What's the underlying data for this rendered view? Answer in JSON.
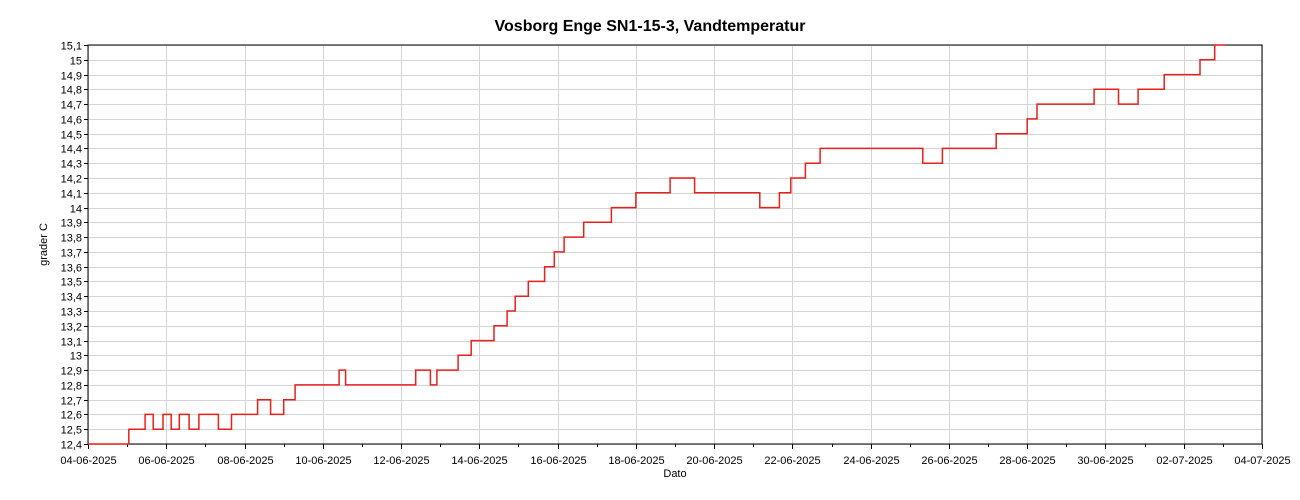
{
  "chart_data": {
    "type": "line",
    "title": "Vosborg Enge SN1-15-3, Vandtemperatur",
    "xlabel": "Dato",
    "ylabel": "grader C",
    "grid": true,
    "legend": "none",
    "xlim": [
      "2025-06-04",
      "2025-07-04"
    ],
    "ylim": [
      12.4,
      15.1
    ],
    "x_tick_labels": [
      "04-06-2025",
      "06-06-2025",
      "08-06-2025",
      "10-06-2025",
      "12-06-2025",
      "14-06-2025",
      "16-06-2025",
      "18-06-2025",
      "20-06-2025",
      "22-06-2025",
      "24-06-2025",
      "26-06-2025",
      "28-06-2025",
      "30-06-2025",
      "02-07-2025",
      "04-07-2025"
    ],
    "y_tick_labels": [
      "12,4",
      "12,5",
      "12,6",
      "12,7",
      "12,8",
      "12,9",
      "13",
      "13,1",
      "13,2",
      "13,3",
      "13,4",
      "13,5",
      "13,6",
      "13,7",
      "13,8",
      "13,9",
      "14",
      "14,1",
      "14,2",
      "14,3",
      "14,4",
      "14,5",
      "14,6",
      "14,7",
      "14,8",
      "14,9",
      "15",
      "15,1"
    ],
    "series": [
      {
        "color": "#e8201c",
        "x": [
          "2025-06-04 00:00",
          "2025-06-04 21:00",
          "2025-06-05 01:00",
          "2025-06-05 11:00",
          "2025-06-05 16:00",
          "2025-06-05 22:00",
          "2025-06-06 03:00",
          "2025-06-06 08:00",
          "2025-06-06 14:00",
          "2025-06-06 20:00",
          "2025-06-07 08:00",
          "2025-06-07 16:00",
          "2025-06-08 00:00",
          "2025-06-08 08:00",
          "2025-06-08 16:00",
          "2025-06-09 00:00",
          "2025-06-09 07:00",
          "2025-06-10 06:00",
          "2025-06-10 10:00",
          "2025-06-10 14:00",
          "2025-06-11 06:00",
          "2025-06-11 18:00",
          "2025-06-12 03:00",
          "2025-06-12 09:00",
          "2025-06-12 18:00",
          "2025-06-12 22:00",
          "2025-06-13 11:00",
          "2025-06-13 19:00",
          "2025-06-14 09:00",
          "2025-06-14 17:00",
          "2025-06-14 22:00",
          "2025-06-15 06:00",
          "2025-06-15 16:00",
          "2025-06-15 22:00",
          "2025-06-16 04:00",
          "2025-06-16 16:00",
          "2025-06-17 09:00",
          "2025-06-18 00:00",
          "2025-06-18 21:00",
          "2025-06-19 12:00",
          "2025-06-20 16:00",
          "2025-06-21 04:00",
          "2025-06-21 16:00",
          "2025-06-21 23:00",
          "2025-06-22 08:00",
          "2025-06-22 17:00",
          "2025-06-23 20:00",
          "2025-06-24 21:00",
          "2025-06-25 08:00",
          "2025-06-25 20:00",
          "2025-06-26 13:00",
          "2025-06-27 05:00",
          "2025-06-28 00:00",
          "2025-06-28 06:00",
          "2025-06-28 21:00",
          "2025-06-29 10:00",
          "2025-06-29 17:00",
          "2025-06-30 00:00",
          "2025-06-30 08:00",
          "2025-06-30 20:00",
          "2025-07-01 03:00",
          "2025-07-01 12:00",
          "2025-07-01 22:00",
          "2025-07-02 10:00",
          "2025-07-02 19:00",
          "2025-07-03 00:00",
          "2025-07-03 02:00"
        ],
        "y": [
          12.4,
          12.4,
          12.5,
          12.6,
          12.5,
          12.6,
          12.5,
          12.6,
          12.5,
          12.6,
          12.5,
          12.6,
          12.6,
          12.7,
          12.6,
          12.7,
          12.8,
          12.8,
          12.9,
          12.8,
          12.8,
          12.8,
          12.8,
          12.9,
          12.8,
          12.9,
          13.0,
          13.1,
          13.2,
          13.3,
          13.4,
          13.5,
          13.6,
          13.7,
          13.8,
          13.9,
          14.0,
          14.1,
          14.2,
          14.1,
          14.1,
          14.0,
          14.1,
          14.2,
          14.3,
          14.4,
          14.4,
          14.4,
          14.3,
          14.4,
          14.4,
          14.5,
          14.6,
          14.7,
          14.7,
          14.7,
          14.8,
          14.8,
          14.7,
          14.8,
          14.8,
          14.9,
          14.9,
          15.0,
          15.1,
          15.1,
          15.1
        ]
      }
    ]
  }
}
